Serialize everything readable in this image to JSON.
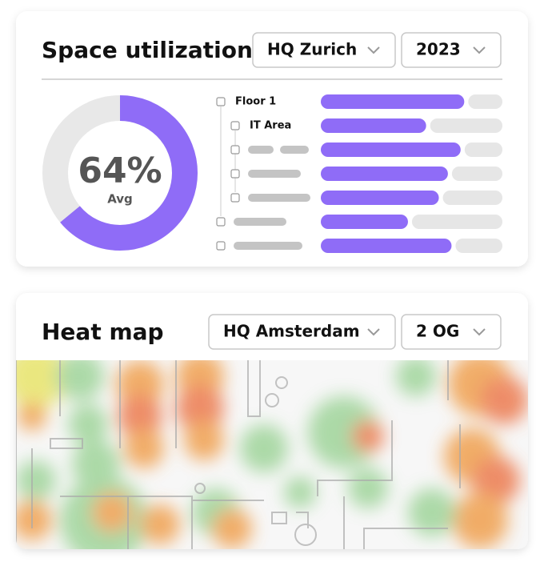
{
  "utilization": {
    "title": "Space utilization",
    "location": "HQ Zurich",
    "year": "2023",
    "average": {
      "value": 64,
      "label": "64%",
      "caption": "Avg"
    },
    "rows": [
      {
        "label": "Floor 1",
        "value": 79
      },
      {
        "label": "IT Area",
        "value": 58
      },
      {
        "label": null,
        "value": 77
      },
      {
        "label": null,
        "value": 70
      },
      {
        "label": null,
        "value": 65
      },
      {
        "label": null,
        "value": 48
      },
      {
        "label": null,
        "value": 72
      }
    ]
  },
  "heatmap": {
    "title": "Heat map",
    "location": "HQ Amsterdam",
    "floor": "2 OG"
  }
}
